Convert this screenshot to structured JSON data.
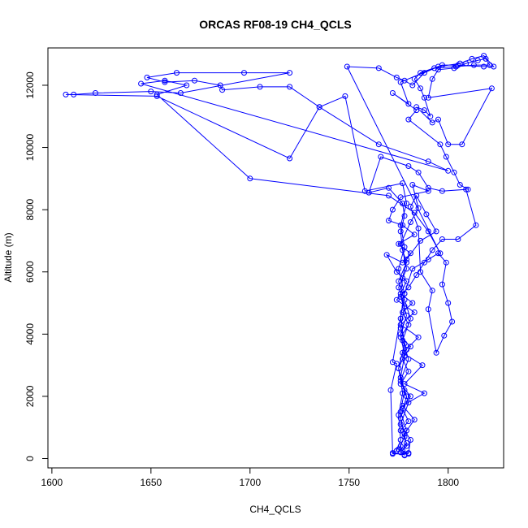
{
  "chart_data": {
    "type": "scatter",
    "title": "ORCAS RF08-19 CH4_QCLS",
    "xlabel": "CH4_QCLS",
    "ylabel": "Altitude (m)",
    "xlim": [
      1598,
      1828
    ],
    "ylim": [
      -300,
      13200
    ],
    "xticks": [
      1600,
      1650,
      1700,
      1750,
      1800
    ],
    "yticks": [
      0,
      2000,
      4000,
      6000,
      8000,
      10000,
      12000
    ],
    "grid": false,
    "legend": "none",
    "color": "#0000ff",
    "series": [
      {
        "points": [
          [
            1778,
            100
          ],
          [
            1776,
            400
          ],
          [
            1779,
            900
          ],
          [
            1776,
            1500
          ],
          [
            1778,
            2200
          ],
          [
            1775,
            2900
          ],
          [
            1779,
            3500
          ],
          [
            1776,
            4200
          ],
          [
            1778,
            4900
          ],
          [
            1775,
            5500
          ],
          [
            1779,
            6100
          ],
          [
            1777,
            6700
          ],
          [
            1776,
            7300
          ],
          [
            1778,
            7800
          ],
          [
            1777,
            8200
          ],
          [
            1770,
            8700
          ],
          [
            1760,
            8550
          ],
          [
            1766,
            9700
          ],
          [
            1780,
            9400
          ],
          [
            1785,
            9200
          ],
          [
            1790,
            8700
          ],
          [
            1797,
            8600
          ],
          [
            1809,
            8650
          ],
          [
            1814,
            7500
          ],
          [
            1805,
            7050
          ],
          [
            1797,
            7050
          ],
          [
            1792,
            6700
          ],
          [
            1788,
            6300
          ],
          [
            1784,
            5900
          ],
          [
            1780,
            5500
          ],
          [
            1774,
            5100
          ],
          [
            1783,
            4700
          ],
          [
            1776,
            4300
          ],
          [
            1785,
            3900
          ],
          [
            1777,
            3400
          ],
          [
            1787,
            3000
          ],
          [
            1778,
            2400
          ],
          [
            1788,
            2100
          ],
          [
            1777,
            1700
          ],
          [
            1783,
            1250
          ],
          [
            1778,
            800
          ],
          [
            1779,
            400
          ],
          [
            1776,
            200
          ],
          [
            1780,
            150
          ],
          [
            1772,
            150
          ],
          [
            1771,
            2200
          ],
          [
            1774,
            3050
          ],
          [
            1772,
            3100
          ],
          [
            1778,
            5300
          ],
          [
            1782,
            6100
          ],
          [
            1790,
            6400
          ],
          [
            1795,
            6600
          ],
          [
            1799,
            6300
          ],
          [
            1797,
            5600
          ],
          [
            1800,
            5000
          ],
          [
            1802,
            4400
          ],
          [
            1798,
            3950
          ],
          [
            1794,
            3400
          ],
          [
            1790,
            4800
          ],
          [
            1792,
            5400
          ],
          [
            1786,
            6000
          ],
          [
            1785,
            7400
          ],
          [
            1781,
            8100
          ],
          [
            1784,
            8450
          ],
          [
            1789,
            7850
          ],
          [
            1794,
            7300
          ],
          [
            1786,
            7000
          ],
          [
            1779,
            6400
          ],
          [
            1777,
            5800
          ],
          [
            1776,
            5200
          ],
          [
            1779,
            4600
          ],
          [
            1776,
            4000
          ],
          [
            1778,
            3300
          ],
          [
            1776,
            2600
          ],
          [
            1779,
            2000
          ],
          [
            1776,
            1300
          ],
          [
            1778,
            700
          ],
          [
            1775,
            300
          ],
          [
            1780,
            180
          ],
          [
            1781,
            600
          ],
          [
            1776,
            1100
          ],
          [
            1780,
            1800
          ],
          [
            1776,
            2500
          ],
          [
            1780,
            3200
          ],
          [
            1777,
            3800
          ],
          [
            1781,
            4500
          ],
          [
            1778,
            5100
          ],
          [
            1775,
            5700
          ],
          [
            1779,
            6300
          ],
          [
            1776,
            6900
          ],
          [
            1781,
            7600
          ],
          [
            1785,
            8050
          ],
          [
            1782,
            8800
          ],
          [
            1790,
            8600
          ],
          [
            1776,
            8400
          ],
          [
            1772,
            8000
          ],
          [
            1770,
            7650
          ],
          [
            1777,
            7500
          ],
          [
            1783,
            7200
          ],
          [
            1775,
            6900
          ],
          [
            1781,
            6600
          ],
          [
            1777,
            6300
          ],
          [
            1769,
            6550
          ],
          [
            1774,
            6000
          ],
          [
            1779,
            5700
          ],
          [
            1776,
            5300
          ],
          [
            1782,
            5000
          ],
          [
            1777,
            4700
          ],
          [
            1780,
            4300
          ],
          [
            1776,
            3900
          ],
          [
            1781,
            3600
          ],
          [
            1777,
            3200
          ],
          [
            1780,
            2800
          ],
          [
            1776,
            2400
          ],
          [
            1781,
            2000
          ],
          [
            1777,
            1600
          ],
          [
            1780,
            1200
          ],
          [
            1776,
            900
          ],
          [
            1779,
            500
          ],
          [
            1777,
            250
          ],
          [
            1778,
            120
          ],
          [
            1772,
            180
          ],
          [
            1774,
            250
          ],
          [
            1776,
            600
          ],
          [
            1775,
            1400
          ],
          [
            1777,
            2100
          ],
          [
            1775,
            2900
          ],
          [
            1778,
            3700
          ],
          [
            1776,
            4500
          ],
          [
            1778,
            5300
          ],
          [
            1775,
            6100
          ],
          [
            1778,
            6800
          ],
          [
            1776,
            7500
          ],
          [
            1779,
            8200
          ],
          [
            1777,
            8850
          ],
          [
            1758,
            8600
          ],
          [
            1748,
            11650
          ],
          [
            1735,
            11300
          ],
          [
            1720,
            11950
          ],
          [
            1705,
            11950
          ],
          [
            1686,
            11850
          ],
          [
            1685,
            12000
          ],
          [
            1672,
            12150
          ],
          [
            1657,
            12100
          ],
          [
            1648,
            12250
          ],
          [
            1663,
            12400
          ],
          [
            1697,
            12400
          ],
          [
            1720,
            12400
          ],
          [
            1665,
            11750
          ],
          [
            1650,
            11800
          ],
          [
            1622,
            11750
          ],
          [
            1611,
            11700
          ],
          [
            1607,
            11700
          ],
          [
            1653,
            11650
          ],
          [
            1720,
            9650
          ],
          [
            1735,
            11300
          ],
          [
            1765,
            10100
          ],
          [
            1790,
            9550
          ],
          [
            1800,
            9250
          ],
          [
            1645,
            12050
          ],
          [
            1657,
            12150
          ],
          [
            1668,
            12000
          ],
          [
            1653,
            11700
          ],
          [
            1700,
            9000
          ],
          [
            1770,
            8450
          ],
          [
            1783,
            7900
          ],
          [
            1790,
            7300
          ],
          [
            1796,
            6600
          ],
          [
            1749,
            12600
          ],
          [
            1765,
            12550
          ],
          [
            1774,
            12250
          ],
          [
            1778,
            12150
          ],
          [
            1782,
            12000
          ],
          [
            1788,
            12400
          ],
          [
            1795,
            12600
          ],
          [
            1806,
            12700
          ],
          [
            1812,
            12850
          ],
          [
            1818,
            12950
          ],
          [
            1823,
            12600
          ],
          [
            1818,
            12600
          ],
          [
            1805,
            12650
          ],
          [
            1797,
            12650
          ],
          [
            1786,
            12400
          ],
          [
            1783,
            12200
          ],
          [
            1786,
            11900
          ],
          [
            1788,
            11600
          ],
          [
            1791,
            11000
          ],
          [
            1788,
            11200
          ],
          [
            1784,
            11300
          ],
          [
            1792,
            10800
          ],
          [
            1795,
            10900
          ],
          [
            1800,
            10100
          ],
          [
            1807,
            10100
          ],
          [
            1822,
            11900
          ],
          [
            1790,
            11600
          ],
          [
            1792,
            12200
          ],
          [
            1795,
            12500
          ],
          [
            1803,
            12550
          ],
          [
            1809,
            12700
          ],
          [
            1815,
            12800
          ],
          [
            1819,
            12850
          ],
          [
            1821,
            12650
          ],
          [
            1813,
            12650
          ],
          [
            1804,
            12600
          ],
          [
            1793,
            12550
          ],
          [
            1776,
            12100
          ],
          [
            1780,
            11400
          ],
          [
            1772,
            11750
          ],
          [
            1784,
            11200
          ],
          [
            1780,
            10900
          ],
          [
            1796,
            10100
          ],
          [
            1799,
            9700
          ],
          [
            1803,
            9200
          ],
          [
            1806,
            8800
          ],
          [
            1810,
            8650
          ]
        ]
      }
    ]
  }
}
